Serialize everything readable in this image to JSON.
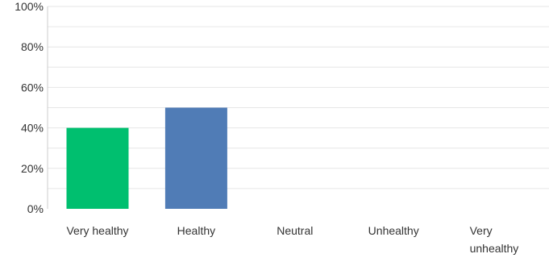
{
  "chart_data": {
    "type": "bar",
    "categories": [
      "Very healthy",
      "Healthy",
      "Neutral",
      "Unhealthy",
      "Very unhealthy"
    ],
    "values": [
      40,
      50,
      0,
      0,
      0
    ],
    "ylim": [
      0,
      100
    ],
    "yticks": [
      "0%",
      "20%",
      "40%",
      "60%",
      "80%",
      "100%"
    ],
    "bar_colors": [
      "#00bf6f",
      "#507cb6",
      "#507cb6",
      "#507cb6",
      "#507cb6"
    ],
    "grid": true,
    "title": "",
    "xlabel": "",
    "ylabel": ""
  }
}
